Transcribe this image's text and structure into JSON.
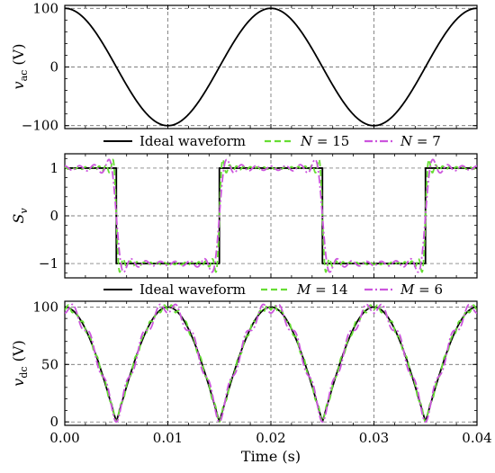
{
  "x_axis": {
    "label": "Time (s)",
    "ticks": [
      "0.00",
      "0.01",
      "0.02",
      "0.03",
      "0.04"
    ],
    "range": [
      0,
      0.04
    ]
  },
  "legends": [
    {
      "entries": [
        {
          "label": "Ideal waveform",
          "style": "solid",
          "color": "#000000"
        },
        {
          "label": "N = 15",
          "style": "dashed",
          "color": "#66dd33"
        },
        {
          "label": "N = 7",
          "style": "dashdot",
          "color": "#cc55dd"
        }
      ]
    },
    {
      "entries": [
        {
          "label": "Ideal waveform",
          "style": "solid",
          "color": "#000000"
        },
        {
          "label": "M = 14",
          "style": "dashed",
          "color": "#66dd33"
        },
        {
          "label": "M = 6",
          "style": "dashdot",
          "color": "#cc55dd"
        }
      ]
    }
  ],
  "chart_data": [
    {
      "type": "line",
      "ylabel": "v_ac (V)",
      "ylabel_main": "v",
      "ylabel_sub": "ac",
      "ylabel_unit": " (V)",
      "ylim": [
        -105,
        105
      ],
      "yticks": [
        -100,
        0,
        100
      ],
      "yticklabels": [
        "-100",
        "0",
        "100"
      ],
      "grid": true,
      "frequency_hz": 50,
      "series": [
        {
          "name": "Ideal waveform",
          "function": "100*cos(2*pi*50*t)",
          "x": [
            0.0,
            0.0025,
            0.005,
            0.0075,
            0.01,
            0.0125,
            0.015,
            0.0175,
            0.02,
            0.0225,
            0.025,
            0.0275,
            0.03,
            0.0325,
            0.035,
            0.0375,
            0.04
          ],
          "y": [
            100,
            70.7,
            0,
            -70.7,
            -100,
            -70.7,
            0,
            70.7,
            100,
            70.7,
            0,
            -70.7,
            -100,
            -70.7,
            0,
            70.7,
            100
          ],
          "color": "#000000"
        }
      ]
    },
    {
      "type": "line",
      "ylabel": "S_v",
      "ylabel_main": "S",
      "ylabel_sub": "v",
      "ylabel_unit": "",
      "ylim": [
        -1.3,
        1.3
      ],
      "yticks": [
        -1,
        0,
        1
      ],
      "yticklabels": [
        "-1",
        "0",
        "1"
      ],
      "grid": true,
      "frequency_hz": 50,
      "series": [
        {
          "name": "Ideal waveform",
          "function": "square wave sign(cos(2*pi*50*t))",
          "x": [
            0.0,
            0.005,
            0.005,
            0.015,
            0.015,
            0.025,
            0.025,
            0.035,
            0.035,
            0.04
          ],
          "y": [
            1,
            1,
            -1,
            -1,
            1,
            1,
            -1,
            -1,
            1,
            1
          ],
          "color": "#000000"
        },
        {
          "name": "N = 15",
          "function": "Fourier series of square wave, 15 odd harmonics",
          "harmonics": 15,
          "color": "#66dd33"
        },
        {
          "name": "N = 7",
          "function": "Fourier series of square wave, 7 odd harmonics",
          "harmonics": 7,
          "color": "#cc55dd"
        }
      ]
    },
    {
      "type": "line",
      "ylabel": "v_dc (V)",
      "ylabel_main": "v",
      "ylabel_sub": "dc",
      "ylabel_unit": " (V)",
      "ylim": [
        -3,
        105
      ],
      "yticks": [
        0,
        50,
        100
      ],
      "yticklabels": [
        "0",
        "50",
        "100"
      ],
      "grid": true,
      "frequency_hz": 50,
      "series": [
        {
          "name": "Ideal waveform",
          "function": "|100*cos(2*pi*50*t)|",
          "x": [
            0.0,
            0.0025,
            0.005,
            0.0075,
            0.01,
            0.0125,
            0.015,
            0.0175,
            0.02,
            0.0225,
            0.025,
            0.0275,
            0.03,
            0.0325,
            0.035,
            0.0375,
            0.04
          ],
          "y": [
            100,
            70.7,
            0,
            70.7,
            100,
            70.7,
            0,
            70.7,
            100,
            70.7,
            0,
            70.7,
            100,
            70.7,
            0,
            70.7,
            100
          ],
          "color": "#000000"
        },
        {
          "name": "M = 14",
          "function": "v_ac * Fourier square wave, 14 harmonics",
          "harmonics": 14,
          "color": "#66dd33"
        },
        {
          "name": "M = 6",
          "function": "v_ac * Fourier square wave, 6 harmonics",
          "harmonics": 6,
          "color": "#cc55dd"
        }
      ]
    }
  ]
}
